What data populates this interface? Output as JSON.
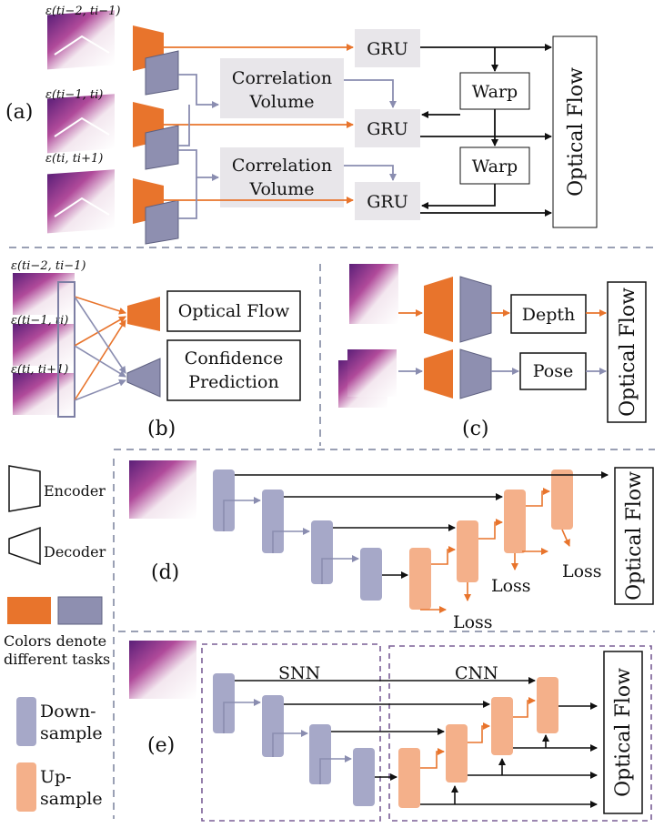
{
  "panels": {
    "a": {
      "label": "(a)",
      "inputs": [
        "ε(t_{i−2}, t_{i−1})",
        "ε(t_{i−1}, t_i)",
        "ε(t_i, t_{i+1})"
      ],
      "input_text": [
        "ε(ti−2, ti−1)",
        "ε(ti−1, ti)",
        "ε(ti, ti+1)"
      ],
      "gru": "GRU",
      "correlation_line1": "Correlation",
      "correlation_line2": "Volume",
      "warp": "Warp",
      "output": "Optical Flow"
    },
    "b": {
      "label": "(b)",
      "input_text": [
        "ε(ti−2, ti−1)",
        "ε(ti−1, ti)",
        "ε(ti, ti+1)"
      ],
      "output1": "Optical Flow",
      "output2_line1": "Confidence",
      "output2_line2": "Prediction"
    },
    "c": {
      "label": "(c)",
      "depth": "Depth",
      "pose": "Pose",
      "output": "Optical Flow"
    },
    "d": {
      "label": "(d)",
      "loss": "Loss",
      "output": "Optical Flow"
    },
    "e": {
      "label": "(e)",
      "snn": "SNN",
      "cnn": "CNN",
      "output": "Optical Flow"
    }
  },
  "legend": {
    "encoder": "Encoder",
    "decoder": "Decoder",
    "colors_line1": "Colors denote",
    "colors_line2": "different tasks",
    "down_line1": "Down-",
    "down_line2": "sample",
    "up_line1": "Up-",
    "up_line2": "sample"
  },
  "colors": {
    "orange": "#e8742c",
    "gray_purple": "#8e8fb0",
    "salmon": "#f4b08a",
    "lavender": "#a6a8c8",
    "box_fill": "#e8e6ea",
    "dashed": "#9aa0b4",
    "frame_purple": "#7a5e96"
  }
}
